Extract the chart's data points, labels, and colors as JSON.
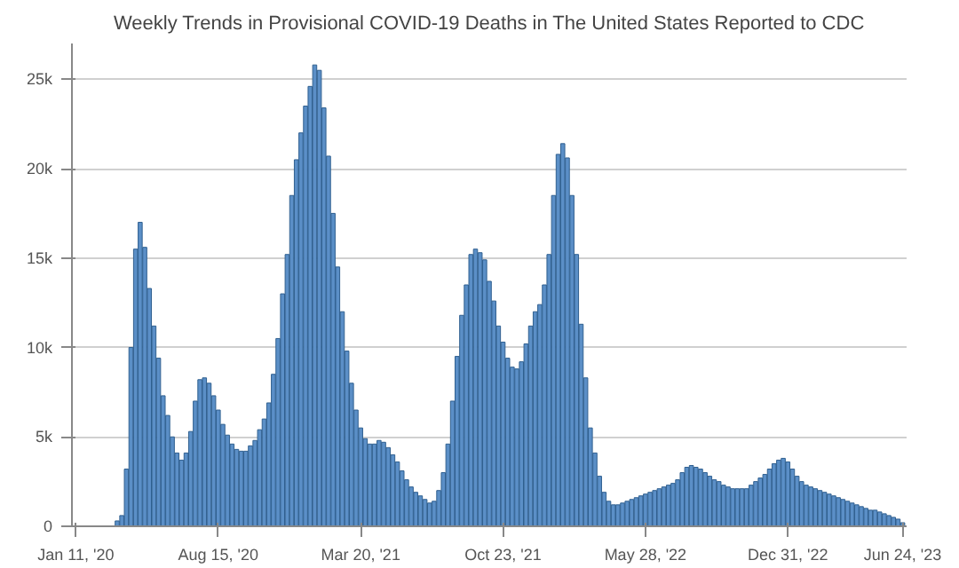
{
  "chart_data": {
    "type": "bar",
    "title": "Weekly Trends in Provisional COVID-19 Deaths in The United States Reported to CDC",
    "x": [
      "2020-01-11",
      "2020-01-18",
      "2020-01-25",
      "2020-02-01",
      "2020-02-08",
      "2020-02-15",
      "2020-02-22",
      "2020-02-29",
      "2020-03-07",
      "2020-03-14",
      "2020-03-21",
      "2020-03-28",
      "2020-04-04",
      "2020-04-11",
      "2020-04-18",
      "2020-04-25",
      "2020-05-02",
      "2020-05-09",
      "2020-05-16",
      "2020-05-23",
      "2020-05-30",
      "2020-06-06",
      "2020-06-13",
      "2020-06-20",
      "2020-06-27",
      "2020-07-04",
      "2020-07-11",
      "2020-07-18",
      "2020-07-25",
      "2020-08-01",
      "2020-08-08",
      "2020-08-15",
      "2020-08-22",
      "2020-08-29",
      "2020-09-05",
      "2020-09-12",
      "2020-09-19",
      "2020-09-26",
      "2020-10-03",
      "2020-10-10",
      "2020-10-17",
      "2020-10-24",
      "2020-10-31",
      "2020-11-07",
      "2020-11-14",
      "2020-11-21",
      "2020-11-28",
      "2020-12-05",
      "2020-12-12",
      "2020-12-19",
      "2020-12-26",
      "2021-01-02",
      "2021-01-09",
      "2021-01-16",
      "2021-01-23",
      "2021-01-30",
      "2021-02-06",
      "2021-02-13",
      "2021-02-20",
      "2021-02-27",
      "2021-03-06",
      "2021-03-13",
      "2021-03-20",
      "2021-03-27",
      "2021-04-03",
      "2021-04-10",
      "2021-04-17",
      "2021-04-24",
      "2021-05-01",
      "2021-05-08",
      "2021-05-15",
      "2021-05-22",
      "2021-05-29",
      "2021-06-05",
      "2021-06-12",
      "2021-06-19",
      "2021-06-26",
      "2021-07-03",
      "2021-07-10",
      "2021-07-17",
      "2021-07-24",
      "2021-07-31",
      "2021-08-07",
      "2021-08-14",
      "2021-08-21",
      "2021-08-28",
      "2021-09-04",
      "2021-09-11",
      "2021-09-18",
      "2021-09-25",
      "2021-10-02",
      "2021-10-09",
      "2021-10-16",
      "2021-10-23",
      "2021-10-30",
      "2021-11-06",
      "2021-11-13",
      "2021-11-20",
      "2021-11-27",
      "2021-12-04",
      "2021-12-11",
      "2021-12-18",
      "2021-12-25",
      "2022-01-01",
      "2022-01-08",
      "2022-01-15",
      "2022-01-22",
      "2022-01-29",
      "2022-02-05",
      "2022-02-12",
      "2022-02-19",
      "2022-02-26",
      "2022-03-05",
      "2022-03-12",
      "2022-03-19",
      "2022-03-26",
      "2022-04-02",
      "2022-04-09",
      "2022-04-16",
      "2022-04-23",
      "2022-04-30",
      "2022-05-07",
      "2022-05-14",
      "2022-05-21",
      "2022-05-28",
      "2022-06-04",
      "2022-06-11",
      "2022-06-18",
      "2022-06-25",
      "2022-07-02",
      "2022-07-09",
      "2022-07-16",
      "2022-07-23",
      "2022-07-30",
      "2022-08-06",
      "2022-08-13",
      "2022-08-20",
      "2022-08-27",
      "2022-09-03",
      "2022-09-10",
      "2022-09-17",
      "2022-09-24",
      "2022-10-01",
      "2022-10-08",
      "2022-10-15",
      "2022-10-22",
      "2022-10-29",
      "2022-11-05",
      "2022-11-12",
      "2022-11-19",
      "2022-11-26",
      "2022-12-03",
      "2022-12-10",
      "2022-12-17",
      "2022-12-24",
      "2022-12-31",
      "2023-01-07",
      "2023-01-14",
      "2023-01-21",
      "2023-01-28",
      "2023-02-04",
      "2023-02-11",
      "2023-02-18",
      "2023-02-25",
      "2023-03-04",
      "2023-03-11",
      "2023-03-18",
      "2023-03-25",
      "2023-04-01",
      "2023-04-08",
      "2023-04-15",
      "2023-04-22",
      "2023-04-29",
      "2023-05-06",
      "2023-05-13",
      "2023-05-20",
      "2023-05-27",
      "2023-06-03",
      "2023-06-10",
      "2023-06-17",
      "2023-06-24"
    ],
    "values": [
      0,
      0,
      0,
      0,
      0,
      0,
      0,
      0,
      0,
      300,
      600,
      3200,
      10000,
      15500,
      17000,
      15600,
      13300,
      11200,
      9400,
      7300,
      6200,
      5000,
      4100,
      3700,
      4100,
      5300,
      7000,
      8200,
      8300,
      8000,
      7300,
      6500,
      5700,
      5100,
      4600,
      4300,
      4200,
      4200,
      4500,
      4800,
      5400,
      6000,
      6900,
      8500,
      10500,
      13000,
      15200,
      18500,
      20500,
      22000,
      23500,
      24600,
      25800,
      25500,
      23400,
      20700,
      17500,
      14500,
      12000,
      9800,
      8000,
      6500,
      5500,
      4900,
      4600,
      4600,
      4800,
      4700,
      4400,
      4000,
      3600,
      3100,
      2600,
      2200,
      1900,
      1700,
      1500,
      1300,
      1400,
      2000,
      3000,
      4600,
      7000,
      9500,
      11800,
      13500,
      15200,
      15500,
      15300,
      14900,
      13700,
      12600,
      11200,
      10300,
      9400,
      8900,
      8800,
      9200,
      10200,
      11200,
      12000,
      12400,
      13500,
      15200,
      18500,
      20800,
      21400,
      20600,
      18500,
      15200,
      11300,
      8300,
      5500,
      4100,
      2800,
      1900,
      1400,
      1200,
      1200,
      1300,
      1400,
      1500,
      1600,
      1700,
      1800,
      1900,
      2000,
      2100,
      2200,
      2300,
      2400,
      2600,
      3000,
      3300,
      3400,
      3300,
      3200,
      3000,
      2800,
      2600,
      2500,
      2300,
      2200,
      2100,
      2100,
      2100,
      2100,
      2300,
      2500,
      2700,
      2900,
      3200,
      3500,
      3700,
      3800,
      3600,
      3200,
      2800,
      2500,
      2300,
      2200,
      2100,
      2000,
      1900,
      1800,
      1700,
      1600,
      1500,
      1400,
      1300,
      1200,
      1100,
      1000,
      900,
      900,
      800,
      700,
      600,
      500,
      400,
      200
    ],
    "color": "#5b8fc7",
    "xlim": [
      "2020-01-05",
      "2023-06-30"
    ],
    "xticks": [
      {
        "value": "2020-01-11",
        "label": "Jan 11, '20"
      },
      {
        "value": "2020-08-15",
        "label": "Aug 15, '20"
      },
      {
        "value": "2021-03-20",
        "label": "Mar 20, '21"
      },
      {
        "value": "2021-10-23",
        "label": "Oct 23, '21"
      },
      {
        "value": "2022-05-28",
        "label": "May 28, '22"
      },
      {
        "value": "2022-12-31",
        "label": "Dec 31, '22"
      },
      {
        "value": "2023-06-24",
        "label": "Jun 24, '23"
      }
    ],
    "ylim": [
      0,
      27000
    ],
    "yticks": [
      {
        "value": 0,
        "label": "0"
      },
      {
        "value": 5000,
        "label": "5k"
      },
      {
        "value": 10000,
        "label": "10k"
      },
      {
        "value": 15000,
        "label": "15k"
      },
      {
        "value": 20000,
        "label": "20k"
      },
      {
        "value": 25000,
        "label": "25k"
      }
    ],
    "grid": "y"
  }
}
